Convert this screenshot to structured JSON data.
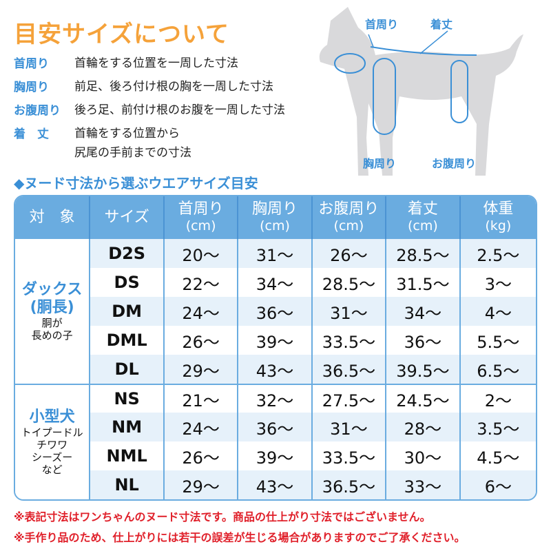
{
  "title": "目安サイズについて",
  "definitions": [
    {
      "term": "首周り",
      "desc": "首輪をする位置を一周した寸法"
    },
    {
      "term": "胸周り",
      "desc": "前足、後ろ付け根の胸を一周した寸法"
    },
    {
      "term": "お腹周り",
      "desc": "後ろ足、前付け根のお腹を一周した寸法"
    },
    {
      "term": "着　丈",
      "desc": "首輪をする位置から",
      "desc2": "尻尾の手前までの寸法"
    }
  ],
  "dog_labels": {
    "neck": "首周り",
    "length": "着丈",
    "chest": "胸周り",
    "belly": "お腹周り"
  },
  "subtitle": "◆ヌード寸法から選ぶウエアサイズ目安",
  "table": {
    "headers": [
      {
        "l": "対　象"
      },
      {
        "l": "サイズ"
      },
      {
        "l": "首周り",
        "u": "(cm)"
      },
      {
        "l": "胸周り",
        "u": "(cm)"
      },
      {
        "l": "お腹周り",
        "u": "(cm)"
      },
      {
        "l": "着丈",
        "u": "(cm)"
      },
      {
        "l": "体重",
        "u": "(kg)"
      }
    ],
    "groups": [
      {
        "name": "ダックス",
        "name2": "(胴長)",
        "desc": "胴が",
        "desc2": "長めの子",
        "rows": [
          [
            "D2S",
            "20～",
            "31～",
            "26～",
            "28.5～",
            "2.5～"
          ],
          [
            "DS",
            "22～",
            "34～",
            "28.5～",
            "31.5～",
            "3～"
          ],
          [
            "DM",
            "24～",
            "36～",
            "31～",
            "34～",
            "4～"
          ],
          [
            "DML",
            "26～",
            "39～",
            "33.5～",
            "36～",
            "5.5～"
          ],
          [
            "DL",
            "29～",
            "43～",
            "36.5～",
            "39.5～",
            "6.5～"
          ]
        ]
      },
      {
        "name": "小型犬",
        "desc": "トイプードル",
        "desc2": "チワワ",
        "desc3": "シーズー",
        "desc4": "など",
        "rows": [
          [
            "NS",
            "21～",
            "32～",
            "27.5～",
            "24.5～",
            "2～"
          ],
          [
            "NM",
            "24～",
            "36～",
            "31～",
            "28～",
            "3.5～"
          ],
          [
            "NML",
            "26～",
            "39～",
            "33.5～",
            "30～",
            "4.5～"
          ],
          [
            "NL",
            "29～",
            "43～",
            "36.5～",
            "33～",
            "6～"
          ]
        ]
      }
    ]
  },
  "notes": [
    "※表記寸法はワンちゃんのヌード寸法です。商品の仕上がり寸法ではございません。",
    "※手作り品のため、仕上がりには若干の誤差が生じる場合がありますのでご了承ください。"
  ],
  "colors": {
    "title": "#f5a23a",
    "accent": "#3a8fd6",
    "header": "#6aace0",
    "note": "#e0202a"
  }
}
